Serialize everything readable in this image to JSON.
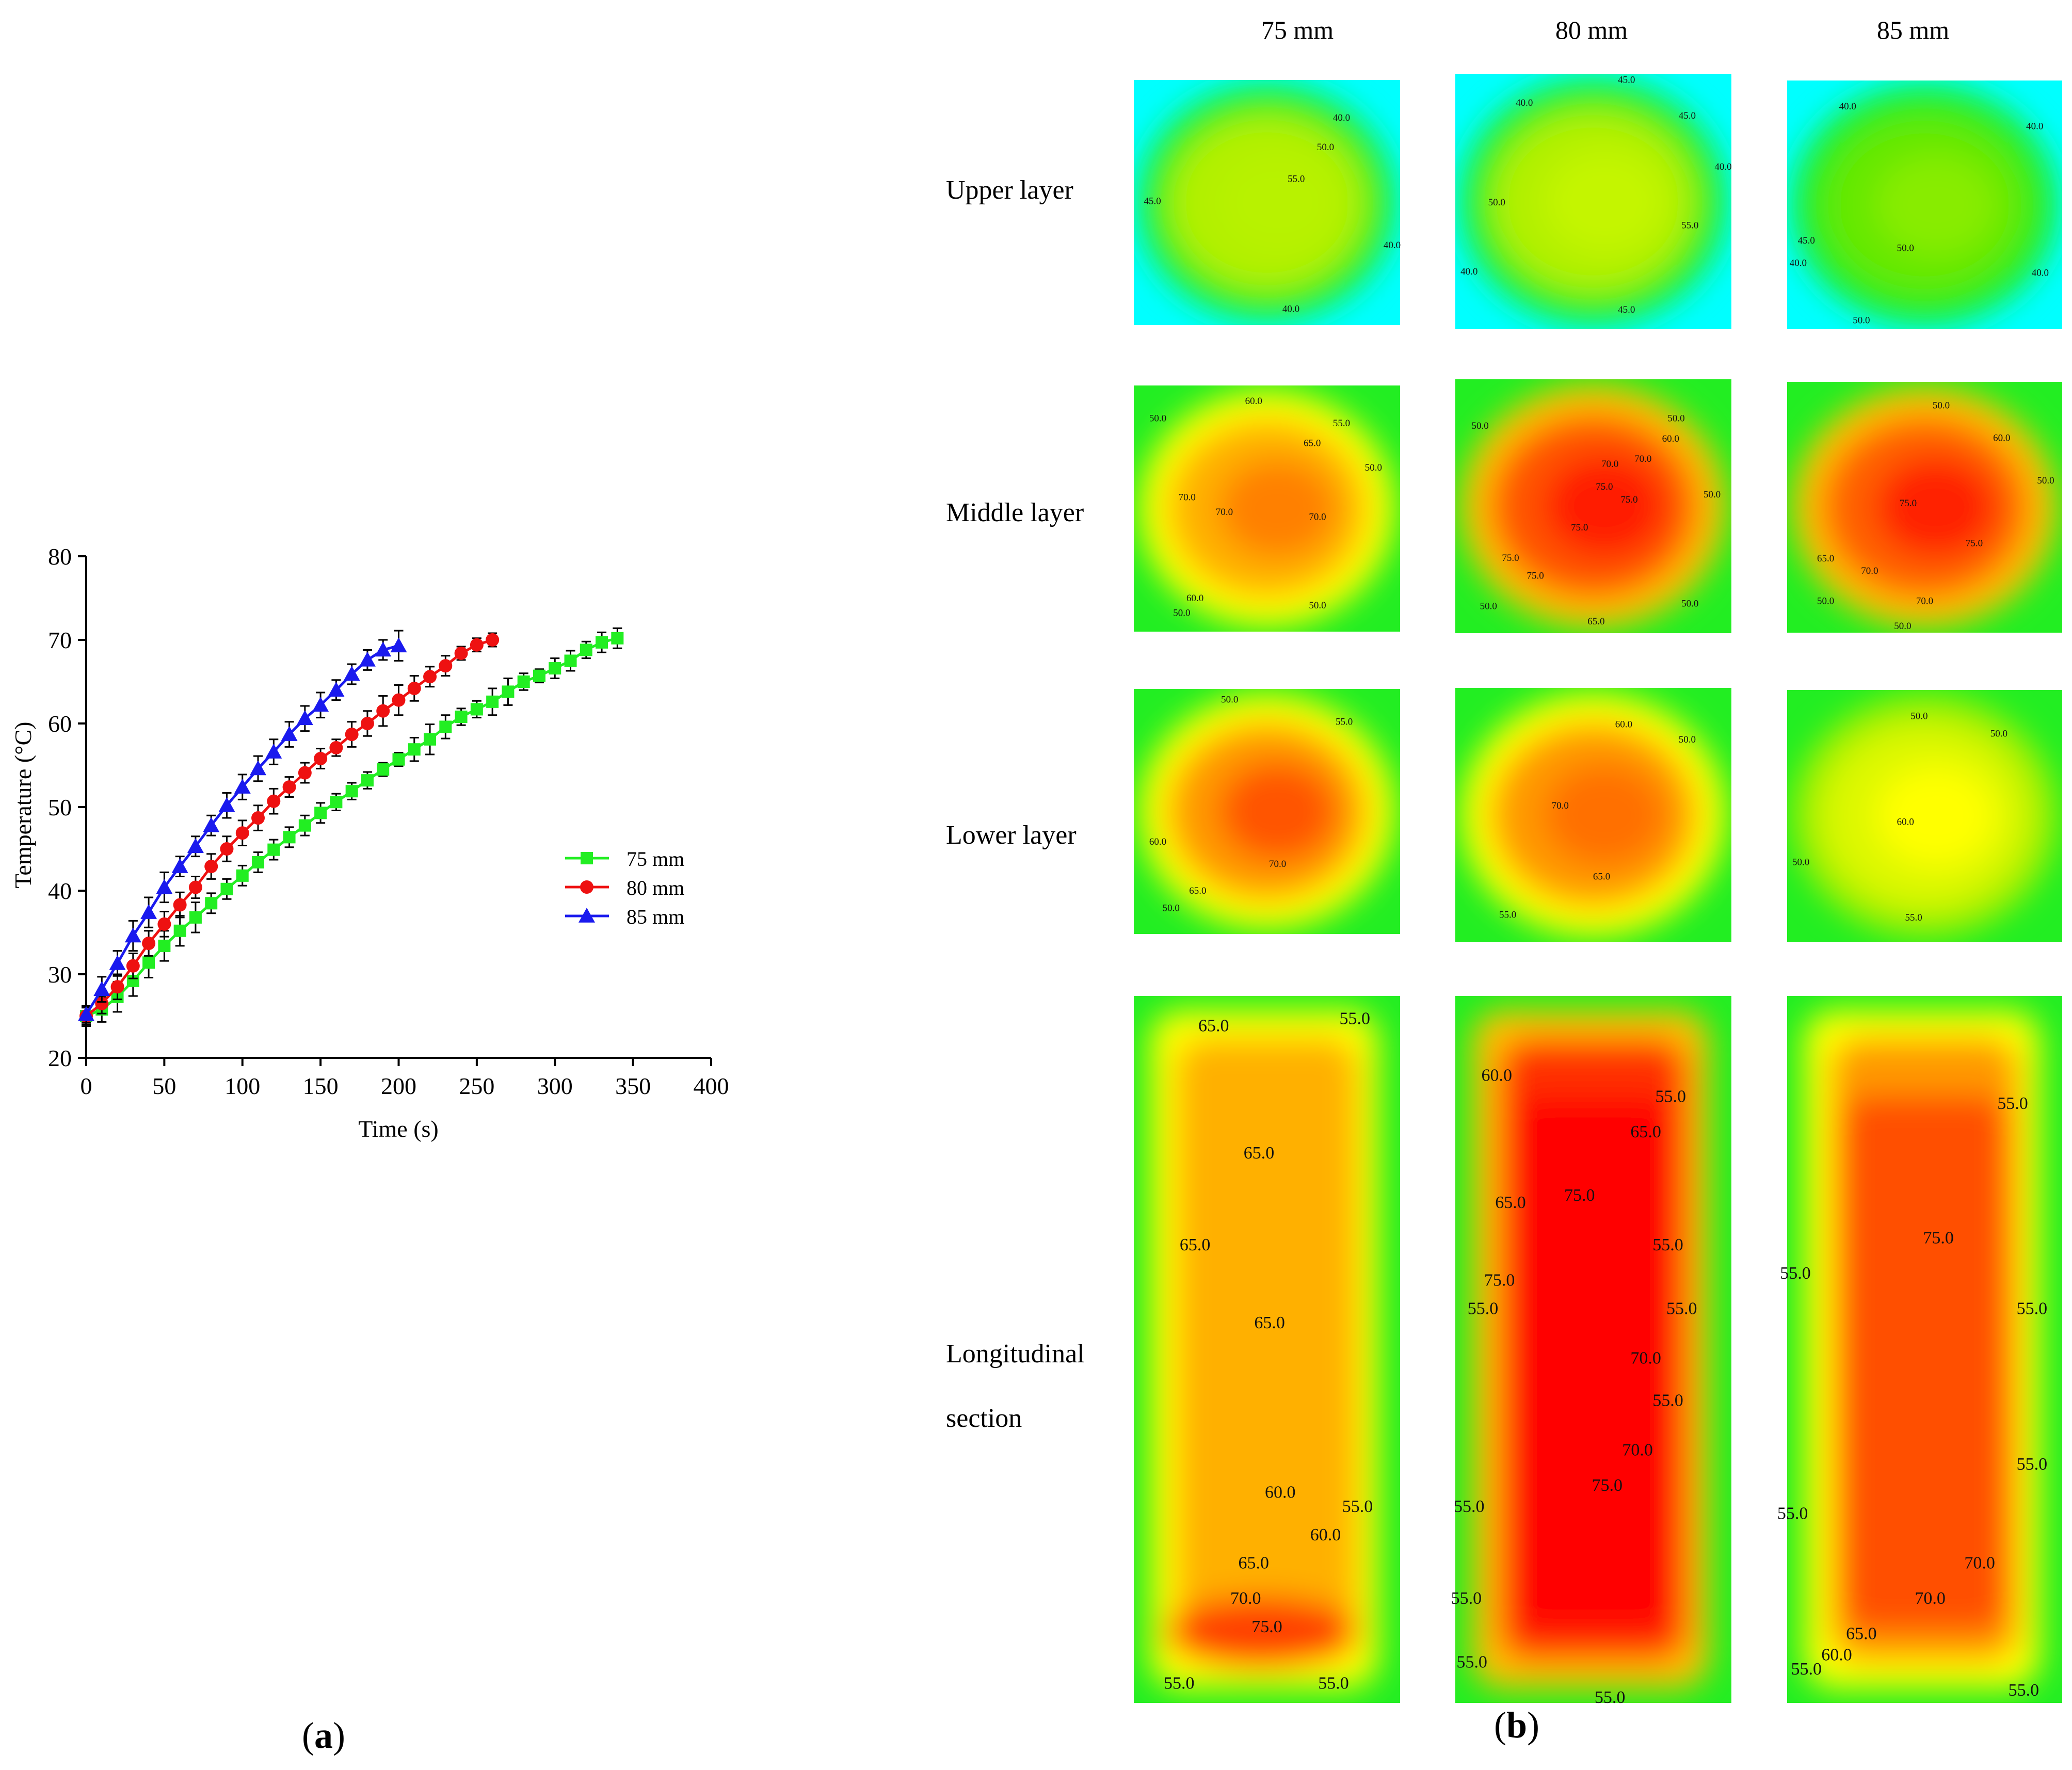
{
  "chart_data": [
    {
      "type": "line",
      "panel": "a",
      "xlabel": "Time (s)",
      "ylabel": "Temperature (°C)",
      "xlim": [
        0,
        400
      ],
      "ylim": [
        20,
        80
      ],
      "xticks": [
        0,
        50,
        100,
        150,
        200,
        250,
        300,
        350,
        400
      ],
      "yticks": [
        20,
        30,
        40,
        50,
        60,
        70,
        80
      ],
      "legend_position": "center-right",
      "series": [
        {
          "name": "75 mm",
          "color": "#22ee22",
          "marker": "square",
          "x": [
            0,
            10,
            20,
            30,
            40,
            50,
            60,
            70,
            80,
            90,
            100,
            110,
            120,
            130,
            140,
            150,
            160,
            170,
            180,
            190,
            200,
            210,
            220,
            230,
            240,
            250,
            260,
            270,
            280,
            290,
            300,
            310,
            320,
            330,
            340
          ],
          "y": [
            25.0,
            25.8,
            27.3,
            29.2,
            31.4,
            33.4,
            35.2,
            36.8,
            38.5,
            40.2,
            41.8,
            43.4,
            44.9,
            46.4,
            47.8,
            49.3,
            50.6,
            51.9,
            53.2,
            54.5,
            55.7,
            56.9,
            58.1,
            59.6,
            60.8,
            61.7,
            62.6,
            63.8,
            65.0,
            65.7,
            66.6,
            67.5,
            68.8,
            69.7,
            70.2
          ],
          "err": [
            1.2,
            1.5,
            1.8,
            1.8,
            1.8,
            1.8,
            1.8,
            1.8,
            1.2,
            1.2,
            1.2,
            1.2,
            1.2,
            1.2,
            1.2,
            1.2,
            1.0,
            1.0,
            1.0,
            0.8,
            0.8,
            1.4,
            1.8,
            1.4,
            1.0,
            1.0,
            1.6,
            1.6,
            1.0,
            0.8,
            1.2,
            1.2,
            1.0,
            1.2,
            1.2
          ]
        },
        {
          "name": "80 mm",
          "color": "#ee1111",
          "marker": "circle",
          "x": [
            0,
            10,
            20,
            30,
            40,
            50,
            60,
            70,
            80,
            90,
            100,
            110,
            120,
            130,
            140,
            150,
            160,
            170,
            180,
            190,
            200,
            210,
            220,
            230,
            240,
            250,
            260
          ],
          "y": [
            25.0,
            26.5,
            28.5,
            31.0,
            33.7,
            36.0,
            38.3,
            40.4,
            42.9,
            45.0,
            46.9,
            48.7,
            50.7,
            52.4,
            54.1,
            55.8,
            57.1,
            58.7,
            60.0,
            61.5,
            62.8,
            64.2,
            65.6,
            66.9,
            68.4,
            69.4,
            70.0
          ],
          "err": [
            1.0,
            1.2,
            1.5,
            1.5,
            1.5,
            1.5,
            1.5,
            1.3,
            1.5,
            1.5,
            1.5,
            1.5,
            1.5,
            1.2,
            1.2,
            1.2,
            1.0,
            1.5,
            1.5,
            1.8,
            1.8,
            1.5,
            1.2,
            1.2,
            0.8,
            0.8,
            0.8
          ]
        },
        {
          "name": "85 mm",
          "color": "#1a1aee",
          "marker": "triangle",
          "x": [
            0,
            10,
            20,
            30,
            40,
            50,
            60,
            70,
            80,
            90,
            100,
            110,
            120,
            130,
            140,
            150,
            160,
            170,
            180,
            190,
            200
          ],
          "y": [
            25.2,
            28.2,
            31.3,
            34.6,
            37.4,
            40.4,
            42.9,
            45.3,
            47.8,
            50.2,
            52.4,
            54.6,
            56.6,
            58.7,
            60.6,
            62.2,
            64.0,
            65.9,
            67.6,
            68.8,
            69.3
          ],
          "err": [
            1.0,
            1.5,
            1.5,
            1.8,
            1.8,
            1.8,
            1.2,
            1.2,
            1.2,
            1.5,
            1.5,
            1.5,
            1.5,
            1.5,
            1.5,
            1.5,
            1.2,
            1.2,
            1.2,
            1.2,
            1.8
          ]
        }
      ]
    },
    {
      "type": "heatmap",
      "panel": "b",
      "columns": [
        "75 mm",
        "80 mm",
        "85 mm"
      ],
      "rows": [
        "Upper layer",
        "Middle layer",
        "Lower layer",
        "Longitudinal",
        "section"
      ],
      "colorscale": [
        "#00ffff",
        "#22ee22",
        "#ccff00",
        "#ffff00",
        "#ff9900",
        "#ff0000"
      ],
      "cells": [
        {
          "row": "upper",
          "col": "75 mm",
          "bg": "#00ffff",
          "outer": "#22ee22",
          "inner": "#b2f000",
          "core": "#b8f200",
          "labels": [
            "40.0",
            "50.0",
            "55.0",
            "45.0",
            "40.0",
            "40.0"
          ]
        },
        {
          "row": "upper",
          "col": "80 mm",
          "bg": "#00ffff",
          "outer": "#22ee22",
          "inner": "#b2f000",
          "core": "#c4f500",
          "labels": [
            "45.0",
            "40.0",
            "45.0",
            "40.0",
            "50.0",
            "55.0",
            "40.0",
            "45.0"
          ]
        },
        {
          "row": "upper",
          "col": "85 mm",
          "bg": "#00ffff",
          "outer": "#22ee22",
          "inner": "#66e800",
          "core": "#88ec00",
          "labels": [
            "40.0",
            "40.0",
            "45.0",
            "40.0",
            "50.0",
            "40.0",
            "50.0"
          ]
        },
        {
          "row": "middle",
          "col": "75 mm",
          "bg": "#22ee22",
          "outer": "#ffff00",
          "inner": "#ffb000",
          "core": "#ff8000",
          "labels": [
            "60.0",
            "50.0",
            "55.0",
            "65.0",
            "50.0",
            "70.0",
            "70.0",
            "70.0",
            "60.0",
            "50.0",
            "50.0"
          ]
        },
        {
          "row": "middle",
          "col": "80 mm",
          "bg": "#22ee22",
          "outer": "#ffc000",
          "inner": "#ff5500",
          "core": "#ff1a00",
          "labels": [
            "50.0",
            "50.0",
            "60.0",
            "70.0",
            "70.0",
            "75.0",
            "75.0",
            "50.0",
            "75.0",
            "75.0",
            "75.0",
            "50.0",
            "50.0",
            "65.0"
          ]
        },
        {
          "row": "middle",
          "col": "85 mm",
          "bg": "#22ee22",
          "outer": "#ffc000",
          "inner": "#ff6000",
          "core": "#ff2000",
          "labels": [
            "50.0",
            "60.0",
            "50.0",
            "75.0",
            "75.0",
            "65.0",
            "70.0",
            "70.0",
            "50.0",
            "50.0"
          ]
        },
        {
          "row": "lower",
          "col": "75 mm",
          "bg": "#22ee22",
          "outer": "#ffff00",
          "inner": "#ff9900",
          "core": "#ff5500",
          "labels": [
            "50.0",
            "55.0",
            "60.0",
            "70.0",
            "65.0",
            "50.0"
          ]
        },
        {
          "row": "lower",
          "col": "80 mm",
          "bg": "#22ee22",
          "outer": "#ffff00",
          "inner": "#ff9900",
          "core": "#ff7000",
          "labels": [
            "60.0",
            "50.0",
            "70.0",
            "65.0",
            "55.0"
          ]
        },
        {
          "row": "lower",
          "col": "85 mm",
          "bg": "#22ee22",
          "outer": "#a8f000",
          "inner": "#ddf800",
          "core": "#ffff00",
          "labels": [
            "50.0",
            "50.0",
            "60.0",
            "50.0",
            "55.0"
          ]
        },
        {
          "row": "long",
          "col": "75 mm",
          "bg": "#22ee22",
          "outer": "#ffff00",
          "inner": "#ffb000",
          "core": "#ff4000",
          "labels": [
            "55.0",
            "65.0",
            "65.0",
            "65.0",
            "65.0",
            "60.0",
            "55.0",
            "60.0",
            "65.0",
            "70.0",
            "75.0",
            "55.0",
            "55.0"
          ]
        },
        {
          "row": "long",
          "col": "80 mm",
          "bg": "#22ee22",
          "outer": "#ffc000",
          "inner": "#ff3000",
          "core": "#ff0000",
          "labels": [
            "60.0",
            "55.0",
            "65.0",
            "65.0",
            "75.0",
            "55.0",
            "75.0",
            "55.0",
            "55.0",
            "70.0",
            "55.0",
            "70.0",
            "75.0",
            "55.0",
            "55.0",
            "55.0",
            "55.0"
          ]
        },
        {
          "row": "long",
          "col": "85 mm",
          "bg": "#22ee22",
          "outer": "#ffff00",
          "inner": "#ff9900",
          "core": "#ff5000",
          "labels": [
            "55.0",
            "75.0",
            "55.0",
            "55.0",
            "55.0",
            "55.0",
            "70.0",
            "70.0",
            "65.0",
            "60.0",
            "55.0",
            "55.0"
          ]
        }
      ]
    }
  ],
  "captions": {
    "a": "a",
    "b": "b"
  }
}
